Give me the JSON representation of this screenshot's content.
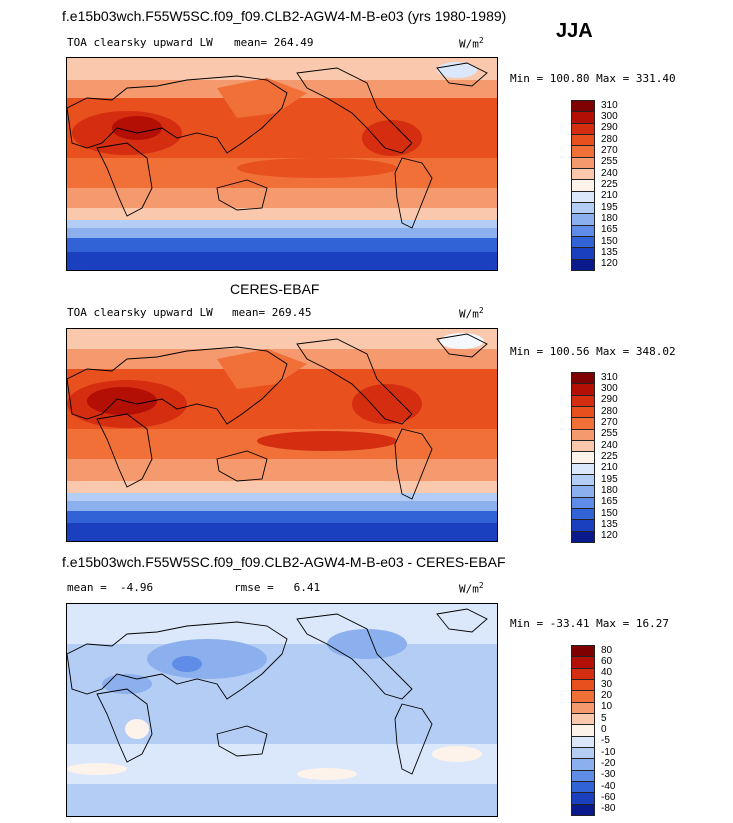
{
  "season": "JJA",
  "units": "W/m",
  "units_sup": "2",
  "panels": [
    {
      "title": "f.e15b03wch.F55W5SC.f09_f09.CLB2-AGW4-M-B-e03 (yrs 1980-1989)",
      "variable": "TOA clearsky upward LW",
      "mean_label": "mean=",
      "mean_value": "264.49",
      "minmax": "Min = 100.80 Max = 331.40",
      "levels": [
        "310",
        "300",
        "290",
        "280",
        "270",
        "255",
        "240",
        "225",
        "210",
        "195",
        "180",
        "165",
        "150",
        "135",
        "120"
      ]
    },
    {
      "title": "CERES-EBAF",
      "variable": "TOA clearsky upward LW",
      "mean_label": "mean=",
      "mean_value": "269.45",
      "minmax": "Min = 100.56 Max = 348.02",
      "levels": [
        "310",
        "300",
        "290",
        "280",
        "270",
        "255",
        "240",
        "225",
        "210",
        "195",
        "180",
        "165",
        "150",
        "135",
        "120"
      ]
    },
    {
      "title": "f.e15b03wch.F55W5SC.f09_f09.CLB2-AGW4-M-B-e03 - CERES-EBAF",
      "mean_label": "mean =",
      "mean_value": "-4.96",
      "rmse_label": "rmse =",
      "rmse_value": "6.41",
      "minmax": "Min = -33.41 Max =  16.27",
      "levels": [
        "80",
        "60",
        "40",
        "30",
        "20",
        "10",
        "5",
        "0",
        "-5",
        "-10",
        "-20",
        "-30",
        "-40",
        "-60",
        "-80"
      ]
    }
  ],
  "colors": {
    "abs_scale": [
      "#7f0000",
      "#b30f05",
      "#d42d0f",
      "#e8501e",
      "#f07038",
      "#f59a6e",
      "#fac9ad",
      "#fdf3ea",
      "#dbe7fa",
      "#b3cdf5",
      "#8cb0ee",
      "#5e8ce6",
      "#3163d6",
      "#1a3fbf",
      "#0a1a8c"
    ],
    "diff_scale": [
      "#7f0000",
      "#b30f05",
      "#d42d0f",
      "#e8501e",
      "#f07038",
      "#f59a6e",
      "#fac9ad",
      "#fdf3ea",
      "#dbe7fa",
      "#b3cdf5",
      "#8cb0ee",
      "#5e8ce6",
      "#3163d6",
      "#1a3fbf",
      "#0a1a8c"
    ]
  }
}
